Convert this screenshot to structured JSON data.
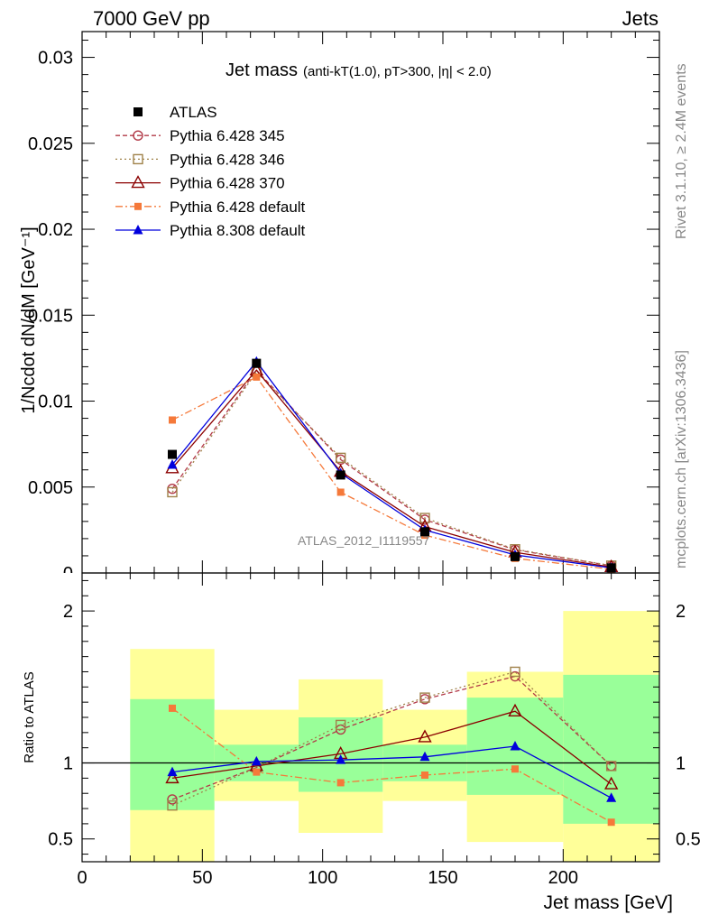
{
  "header": {
    "left": "7000 GeV pp",
    "right": "Jets"
  },
  "side_text": {
    "rivet": "Rivet 3.1.10, ≥ 2.4M events",
    "mcplots": "mcplots.cern.ch [arXiv:1306.3436]"
  },
  "chart_data": [
    {
      "type": "line",
      "panel": "main",
      "title_main": "Jet mass",
      "title_detail": "(anti-kT(1.0), pT>300, |η| < 2.0)",
      "ylabel": "1/Ncdot dN/dM [GeV⁻¹]",
      "watermark": "ATLAS_2012_I1119557",
      "xlim": [
        0,
        240
      ],
      "ylim": [
        0,
        0.0315
      ],
      "yticks": [
        {
          "v": 0.005,
          "label": "0.005"
        },
        {
          "v": 0.01,
          "label": "0.01"
        },
        {
          "v": 0.015,
          "label": "0.015"
        },
        {
          "v": 0.02,
          "label": "0.02"
        },
        {
          "v": 0.025,
          "label": "0.025"
        },
        {
          "v": 0.03,
          "label": "0.03"
        }
      ],
      "x": [
        37.5,
        72.5,
        107.5,
        142.5,
        180,
        220
      ],
      "data": {
        "name": "ATLAS",
        "y": [
          0.0069,
          0.0122,
          0.0057,
          0.0024,
          0.00095,
          0.0003
        ],
        "color": "#000000"
      },
      "series": [
        {
          "name": "Pythia 6.428 345",
          "y": [
            0.0049,
            0.0118,
            0.0066,
            0.0031,
            0.00135,
            0.00042
          ],
          "color": "#b23a48",
          "dash": "5,3",
          "marker": "circle-open"
        },
        {
          "name": "Pythia 6.428 346",
          "y": [
            0.0047,
            0.0117,
            0.0067,
            0.0032,
            0.00138,
            0.00043
          ],
          "color": "#a0824a",
          "dash": "2,3",
          "marker": "square-open"
        },
        {
          "name": "Pythia 6.428 370",
          "y": [
            0.0061,
            0.0118,
            0.0059,
            0.0027,
            0.0012,
            0.00035
          ],
          "color": "#8b0000",
          "dash": "",
          "marker": "triangle-open"
        },
        {
          "name": "Pythia 6.428 default",
          "y": [
            0.0089,
            0.0114,
            0.0047,
            0.0022,
            0.00085,
            0.00022
          ],
          "color": "#f5793a",
          "dash": "8,3,2,3",
          "marker": "square-filled"
        },
        {
          "name": "Pythia 8.308 default",
          "y": [
            0.0063,
            0.0123,
            0.0058,
            0.0025,
            0.00105,
            0.0003
          ],
          "color": "#0000dd",
          "dash": "",
          "marker": "triangle-filled"
        }
      ]
    },
    {
      "type": "line",
      "panel": "ratio",
      "ylabel": "Ratio to ATLAS",
      "xlabel": "Jet mass [GeV]",
      "xlim": [
        0,
        240
      ],
      "ylim": [
        0.35,
        2.25
      ],
      "yticks": [
        {
          "v": 0.5,
          "label": "0.5"
        },
        {
          "v": 1,
          "label": "1"
        },
        {
          "v": 2,
          "label": "2"
        }
      ],
      "xticks": [
        {
          "v": 0,
          "label": "0"
        },
        {
          "v": 50,
          "label": "50"
        },
        {
          "v": 100,
          "label": "100"
        },
        {
          "v": 150,
          "label": "150"
        },
        {
          "v": 200,
          "label": "200"
        }
      ],
      "bins": [
        {
          "lo": 20,
          "hi": 55,
          "g_lo": 0.69,
          "g_hi": 1.42,
          "y_lo": 0.35,
          "y_hi": 1.75
        },
        {
          "lo": 55,
          "hi": 90,
          "g_lo": 0.88,
          "g_hi": 1.12,
          "y_lo": 0.75,
          "y_hi": 1.35
        },
        {
          "lo": 90,
          "hi": 125,
          "g_lo": 0.81,
          "g_hi": 1.3,
          "y_lo": 0.54,
          "y_hi": 1.55
        },
        {
          "lo": 125,
          "hi": 160,
          "g_lo": 0.88,
          "g_hi": 1.12,
          "y_lo": 0.75,
          "y_hi": 1.35
        },
        {
          "lo": 160,
          "hi": 200,
          "g_lo": 0.79,
          "g_hi": 1.43,
          "y_lo": 0.48,
          "y_hi": 1.6
        },
        {
          "lo": 200,
          "hi": 240,
          "g_lo": 0.6,
          "g_hi": 1.58,
          "y_lo": 0.35,
          "y_hi": 2.0
        }
      ],
      "x": [
        37.5,
        72.5,
        107.5,
        142.5,
        180,
        220
      ],
      "series": [
        {
          "name": "Pythia 6.428 345",
          "y": [
            0.76,
            0.97,
            1.22,
            1.42,
            1.57,
            0.98
          ]
        },
        {
          "name": "Pythia 6.428 346",
          "y": [
            0.72,
            0.97,
            1.25,
            1.43,
            1.6,
            0.98
          ]
        },
        {
          "name": "Pythia 6.428 370",
          "y": [
            0.9,
            0.98,
            1.06,
            1.17,
            1.34,
            0.86
          ]
        },
        {
          "name": "Pythia 6.428 default",
          "y": [
            1.36,
            0.94,
            0.87,
            0.92,
            0.96,
            0.61
          ]
        },
        {
          "name": "Pythia 8.308 default",
          "y": [
            0.94,
            1.01,
            1.02,
            1.04,
            1.11,
            0.77
          ]
        }
      ]
    }
  ]
}
